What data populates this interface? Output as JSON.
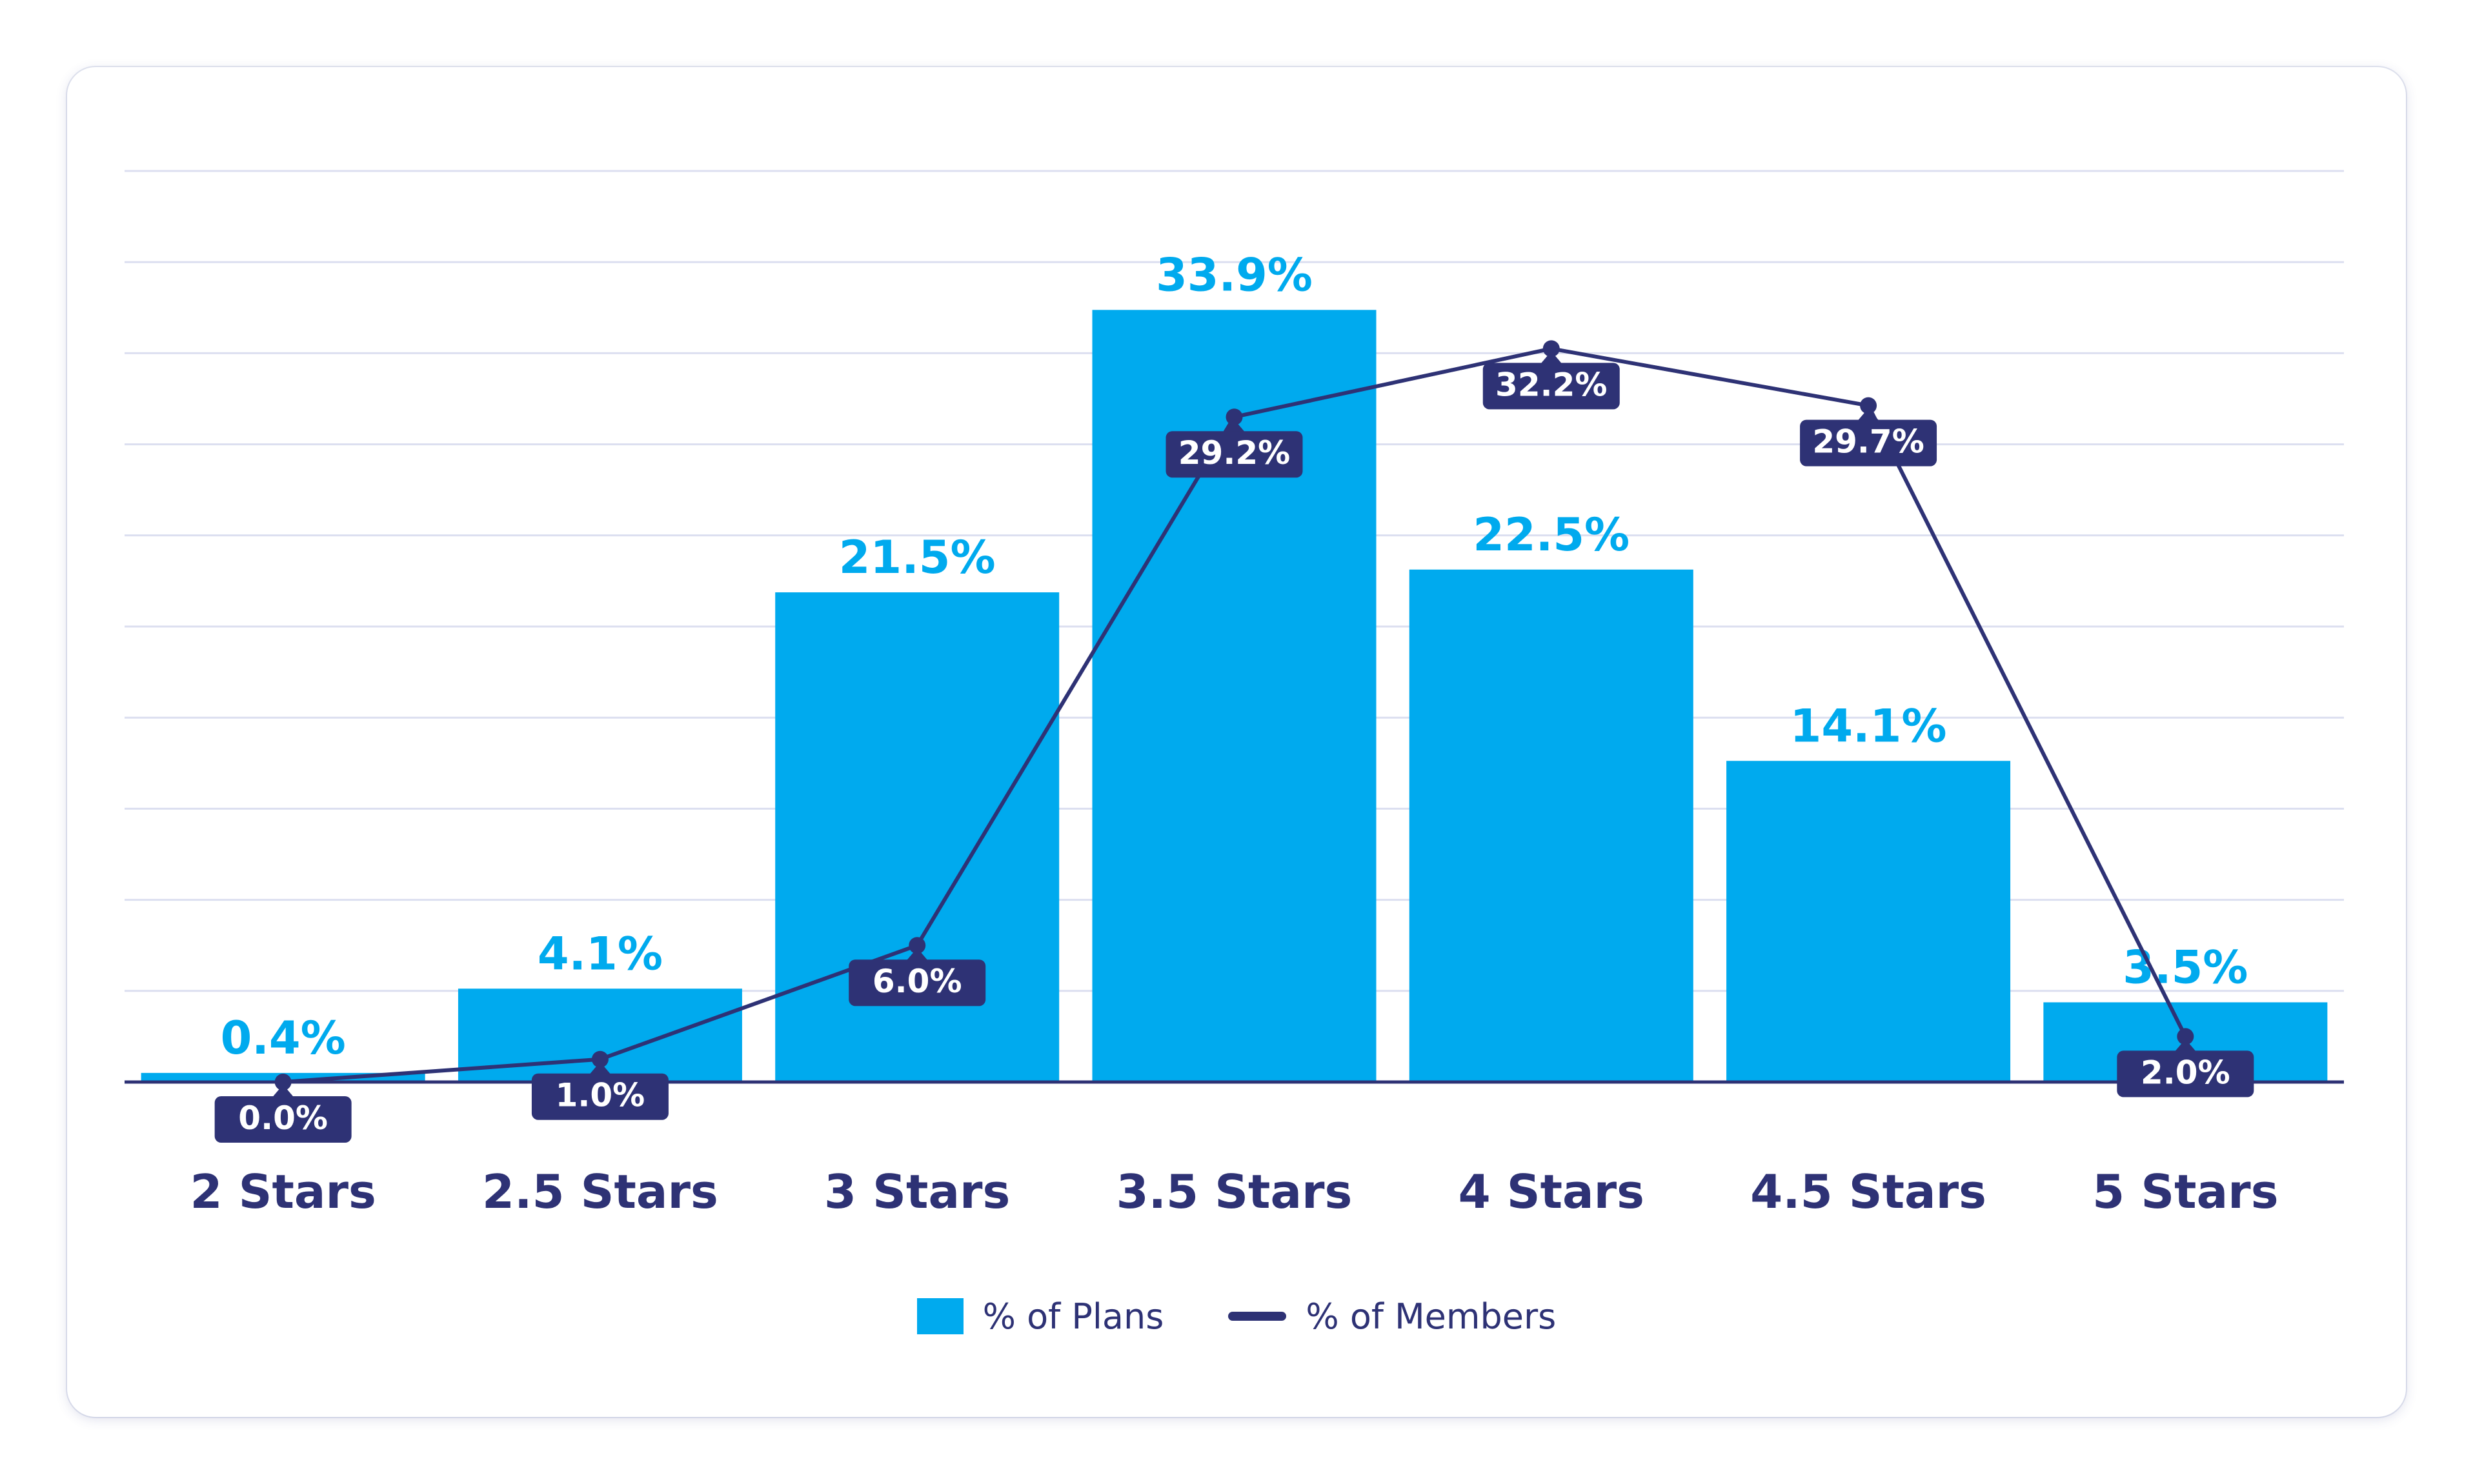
{
  "chart_data": {
    "type": "bar",
    "categories": [
      "2 Stars",
      "2.5 Stars",
      "3 Stars",
      "3.5 Stars",
      "4 Stars",
      "4.5 Stars",
      "5 Stars"
    ],
    "series": [
      {
        "name": "% of Plans",
        "type": "bar",
        "values": [
          0.4,
          4.1,
          21.5,
          33.9,
          22.5,
          14.1,
          3.5
        ],
        "labels": [
          "0.4%",
          "4.1%",
          "21.5%",
          "33.9%",
          "22.5%",
          "14.1%",
          "3.5%"
        ],
        "color": "#00aaee"
      },
      {
        "name": "% of Members",
        "type": "line",
        "values": [
          0.0,
          1.0,
          6.0,
          29.2,
          32.2,
          29.7,
          2.0
        ],
        "labels": [
          "0.0%",
          "1.0%",
          "6.0%",
          "29.2%",
          "32.2%",
          "29.7%",
          "2.0%"
        ],
        "color": "#2e3275"
      }
    ],
    "ylim": [
      0,
      40
    ],
    "grid": true,
    "legend": "bottom-center",
    "title": "",
    "xlabel": "",
    "ylabel": ""
  }
}
